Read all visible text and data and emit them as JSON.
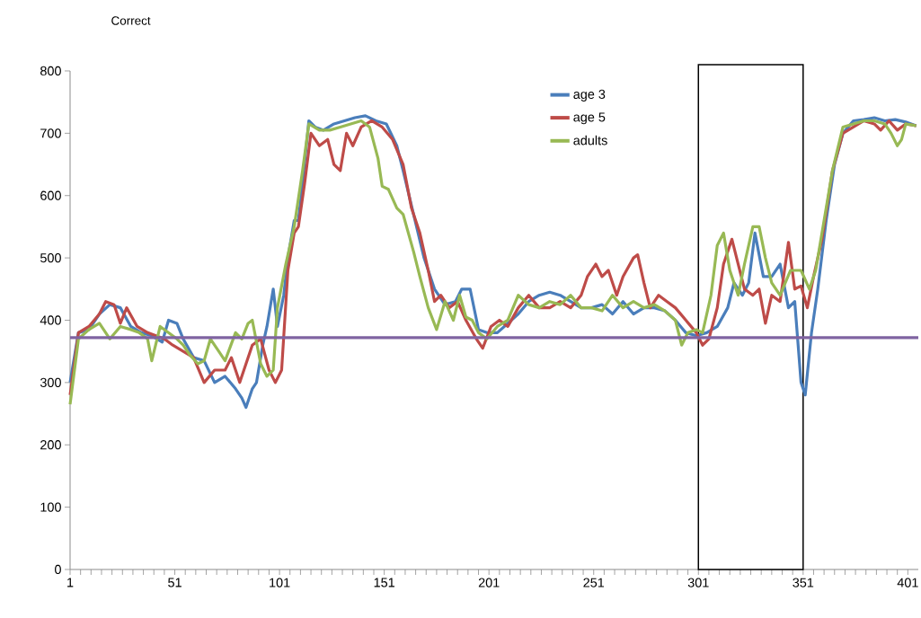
{
  "chart_data": {
    "type": "line",
    "title": "Correct",
    "series": [
      {
        "name": "age 3",
        "color": "#4a7ebb",
        "x": [
          1,
          5,
          10,
          15,
          20,
          25,
          30,
          35,
          40,
          45,
          48,
          52,
          55,
          60,
          65,
          70,
          75,
          80,
          83,
          85,
          88,
          90,
          93,
          95,
          98,
          100,
          103,
          105,
          108,
          110,
          112,
          115,
          118,
          122,
          127,
          132,
          137,
          142,
          147,
          152,
          157,
          160,
          165,
          170,
          175,
          180,
          185,
          188,
          192,
          196,
          200,
          205,
          210,
          215,
          220,
          225,
          230,
          235,
          240,
          245,
          250,
          255,
          260,
          265,
          270,
          275,
          280,
          285,
          290,
          295,
          300,
          305,
          310,
          315,
          318,
          322,
          325,
          328,
          332,
          336,
          340,
          344,
          347,
          350,
          352,
          355,
          358,
          362,
          366,
          370,
          375,
          380,
          385,
          390,
          395,
          400,
          405
        ],
        "values": [
          300,
          380,
          385,
          410,
          425,
          420,
          390,
          380,
          375,
          365,
          400,
          395,
          370,
          340,
          335,
          300,
          310,
          290,
          275,
          260,
          290,
          300,
          360,
          390,
          450,
          390,
          440,
          500,
          560,
          560,
          620,
          720,
          710,
          705,
          715,
          720,
          725,
          728,
          720,
          715,
          680,
          640,
          570,
          500,
          450,
          425,
          430,
          450,
          450,
          385,
          380,
          380,
          395,
          410,
          430,
          440,
          445,
          440,
          430,
          420,
          420,
          425,
          410,
          430,
          410,
          420,
          420,
          415,
          400,
          380,
          375,
          380,
          390,
          420,
          460,
          440,
          460,
          540,
          470,
          470,
          490,
          420,
          430,
          300,
          280,
          380,
          450,
          560,
          650,
          700,
          720,
          722,
          725,
          720,
          722,
          718,
          712
        ]
      },
      {
        "name": "age 5",
        "color": "#be4b48",
        "x": [
          1,
          5,
          10,
          15,
          18,
          22,
          25,
          28,
          33,
          38,
          42,
          46,
          50,
          55,
          60,
          65,
          70,
          75,
          78,
          82,
          85,
          88,
          92,
          96,
          99,
          102,
          105,
          108,
          110,
          113,
          116,
          120,
          124,
          127,
          130,
          133,
          136,
          140,
          145,
          150,
          155,
          160,
          164,
          168,
          172,
          175,
          178,
          182,
          186,
          190,
          195,
          198,
          202,
          206,
          210,
          215,
          220,
          225,
          230,
          235,
          240,
          245,
          248,
          252,
          255,
          258,
          262,
          265,
          270,
          272,
          275,
          278,
          282,
          286,
          290,
          295,
          300,
          303,
          306,
          310,
          313,
          317,
          320,
          323,
          327,
          330,
          333,
          336,
          340,
          344,
          347,
          350,
          353,
          356,
          360,
          365,
          370,
          375,
          380,
          385,
          388,
          392,
          396,
          400,
          405
        ],
        "values": [
          280,
          380,
          390,
          410,
          430,
          425,
          395,
          420,
          390,
          380,
          375,
          370,
          360,
          350,
          340,
          300,
          320,
          320,
          340,
          300,
          330,
          360,
          370,
          320,
          300,
          320,
          480,
          540,
          550,
          620,
          700,
          680,
          690,
          650,
          640,
          700,
          680,
          710,
          720,
          710,
          690,
          650,
          580,
          540,
          480,
          430,
          440,
          420,
          430,
          400,
          370,
          355,
          390,
          400,
          390,
          420,
          440,
          420,
          420,
          430,
          420,
          440,
          470,
          490,
          470,
          480,
          440,
          470,
          500,
          505,
          460,
          420,
          440,
          430,
          420,
          400,
          380,
          360,
          370,
          420,
          490,
          530,
          490,
          450,
          440,
          450,
          395,
          440,
          430,
          525,
          450,
          455,
          420,
          470,
          530,
          640,
          700,
          710,
          720,
          715,
          705,
          720,
          705,
          715,
          712
        ]
      },
      {
        "name": "adults",
        "color": "#98b954",
        "x": [
          1,
          5,
          10,
          15,
          20,
          25,
          30,
          34,
          38,
          40,
          44,
          48,
          52,
          55,
          58,
          62,
          65,
          68,
          72,
          75,
          80,
          83,
          86,
          88,
          92,
          95,
          98,
          100,
          104,
          108,
          112,
          115,
          120,
          125,
          130,
          135,
          140,
          144,
          148,
          150,
          153,
          157,
          160,
          165,
          168,
          172,
          176,
          180,
          184,
          187,
          190,
          193,
          196,
          200,
          205,
          210,
          215,
          220,
          225,
          230,
          235,
          240,
          245,
          250,
          255,
          260,
          265,
          270,
          275,
          280,
          285,
          290,
          293,
          296,
          300,
          303,
          307,
          310,
          313,
          316,
          320,
          323,
          327,
          330,
          333,
          336,
          340,
          345,
          350,
          354,
          357,
          360,
          365,
          370,
          375,
          380,
          385,
          390,
          393,
          396,
          398,
          400,
          405
        ],
        "values": [
          265,
          370,
          385,
          395,
          370,
          390,
          385,
          380,
          370,
          335,
          390,
          380,
          370,
          360,
          345,
          330,
          335,
          370,
          350,
          335,
          380,
          370,
          395,
          400,
          330,
          310,
          320,
          420,
          490,
          550,
          640,
          715,
          705,
          705,
          710,
          715,
          720,
          710,
          660,
          615,
          610,
          580,
          570,
          510,
          470,
          420,
          385,
          430,
          400,
          440,
          405,
          400,
          380,
          370,
          390,
          400,
          440,
          425,
          420,
          430,
          425,
          440,
          420,
          420,
          415,
          440,
          420,
          430,
          420,
          425,
          415,
          400,
          360,
          380,
          385,
          380,
          440,
          520,
          540,
          480,
          440,
          490,
          550,
          550,
          500,
          460,
          440,
          480,
          480,
          450,
          480,
          540,
          640,
          710,
          715,
          720,
          720,
          715,
          700,
          680,
          690,
          715,
          712
        ]
      }
    ],
    "xlim": [
      1,
      406
    ],
    "ylim": [
      0,
      800
    ],
    "xticks": [
      1,
      {
        "value": 6,
        "label": null
      },
      {
        "value": 11,
        "label": null
      },
      {
        "value": 16,
        "label": null
      },
      {
        "value": 21,
        "label": null
      },
      {
        "value": 26,
        "label": null
      },
      {
        "value": 31,
        "label": null
      },
      {
        "value": 36,
        "label": null
      },
      {
        "value": 41,
        "label": null
      },
      {
        "value": 46,
        "label": null
      },
      51,
      {
        "value": 56,
        "label": null
      },
      {
        "value": 61,
        "label": null
      },
      {
        "value": 66,
        "label": null
      },
      {
        "value": 71,
        "label": null
      },
      {
        "value": 76,
        "label": null
      },
      {
        "value": 81,
        "label": null
      },
      {
        "value": 86,
        "label": null
      },
      {
        "value": 91,
        "label": null
      },
      {
        "value": 96,
        "label": null
      },
      101,
      {
        "value": 106,
        "label": null
      },
      {
        "value": 111,
        "label": null
      },
      {
        "value": 116,
        "label": null
      },
      {
        "value": 121,
        "label": null
      },
      {
        "value": 126,
        "label": null
      },
      {
        "value": 131,
        "label": null
      },
      {
        "value": 136,
        "label": null
      },
      {
        "value": 141,
        "label": null
      },
      {
        "value": 146,
        "label": null
      },
      151,
      {
        "value": 156,
        "label": null
      },
      {
        "value": 161,
        "label": null
      },
      {
        "value": 166,
        "label": null
      },
      {
        "value": 171,
        "label": null
      },
      {
        "value": 176,
        "label": null
      },
      {
        "value": 181,
        "label": null
      },
      {
        "value": 186,
        "label": null
      },
      {
        "value": 191,
        "label": null
      },
      {
        "value": 196,
        "label": null
      },
      201,
      {
        "value": 206,
        "label": null
      },
      {
        "value": 211,
        "label": null
      },
      {
        "value": 216,
        "label": null
      },
      {
        "value": 221,
        "label": null
      },
      {
        "value": 226,
        "label": null
      },
      {
        "value": 231,
        "label": null
      },
      {
        "value": 236,
        "label": null
      },
      {
        "value": 241,
        "label": null
      },
      {
        "value": 246,
        "label": null
      },
      251,
      {
        "value": 256,
        "label": null
      },
      {
        "value": 261,
        "label": null
      },
      {
        "value": 266,
        "label": null
      },
      {
        "value": 271,
        "label": null
      },
      {
        "value": 276,
        "label": null
      },
      {
        "value": 281,
        "label": null
      },
      {
        "value": 286,
        "label": null
      },
      {
        "value": 291,
        "label": null
      },
      {
        "value": 296,
        "label": null
      },
      301,
      {
        "value": 306,
        "label": null
      },
      {
        "value": 311,
        "label": null
      },
      {
        "value": 316,
        "label": null
      },
      {
        "value": 321,
        "label": null
      },
      {
        "value": 326,
        "label": null
      },
      {
        "value": 331,
        "label": null
      },
      {
        "value": 336,
        "label": null
      },
      {
        "value": 341,
        "label": null
      },
      {
        "value": 346,
        "label": null
      },
      351,
      {
        "value": 356,
        "label": null
      },
      {
        "value": 361,
        "label": null
      },
      {
        "value": 366,
        "label": null
      },
      {
        "value": 371,
        "label": null
      },
      {
        "value": 376,
        "label": null
      },
      {
        "value": 381,
        "label": null
      },
      {
        "value": 386,
        "label": null
      },
      {
        "value": 391,
        "label": null
      },
      {
        "value": 396,
        "label": null
      },
      401
    ],
    "yticks": [
      0,
      100,
      200,
      300,
      400,
      500,
      600,
      700,
      800
    ],
    "ref_lines": [
      {
        "axis": "y",
        "value": 372,
        "color": "#7f63a1"
      }
    ],
    "bands": [
      {
        "axis": "x",
        "from": 301,
        "to": 351,
        "color": "#000000"
      }
    ],
    "legend": "top",
    "grid": false,
    "marker": "none",
    "line_style": "solid"
  }
}
